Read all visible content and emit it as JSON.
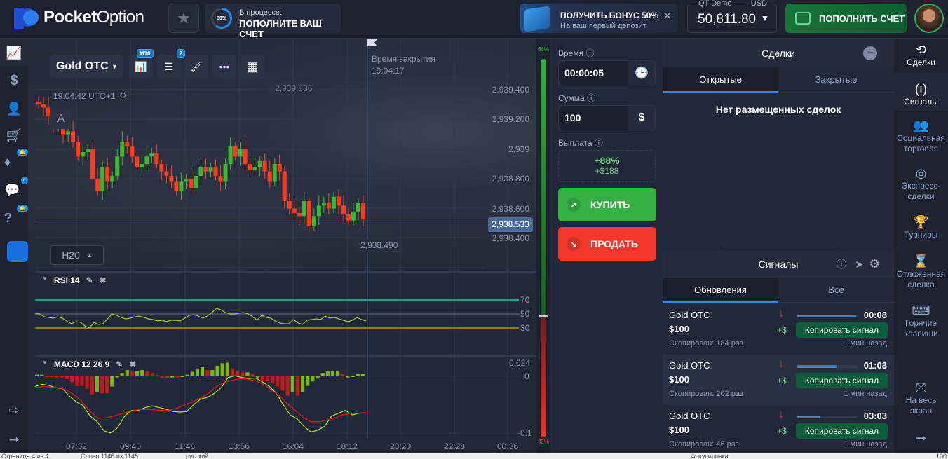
{
  "header": {
    "logo_bold": "Pocket",
    "logo_light": "Option",
    "progress": {
      "percent": 60,
      "percent_label": "60%",
      "line1": "В процессе:",
      "line2": "ПОПОЛНИТЕ ВАШ СЧЕТ"
    },
    "bonus": {
      "title": "ПОЛУЧИТЬ БОНУС 50%",
      "subtitle": "На ваш первый депозит"
    },
    "account": {
      "type": "QT Demo",
      "currency": "USD",
      "balance": "50,811.80"
    },
    "deposit_label": "ПОПОЛНИТЬ СЧЕТ"
  },
  "left_sidebar": {
    "items": [
      {
        "icon": "chart-icon"
      },
      {
        "icon": "dollar-icon"
      },
      {
        "icon": "user-icon"
      },
      {
        "icon": "cart-icon"
      },
      {
        "icon": "diamond-icon",
        "badge": "🔔"
      },
      {
        "icon": "chat-icon",
        "badge": "4"
      },
      {
        "icon": "help-icon",
        "badge": "🔔"
      },
      {
        "icon": "app-icon"
      }
    ],
    "bottom": [
      {
        "icon": "logout-icon"
      },
      {
        "icon": "arrow-right-icon"
      }
    ]
  },
  "chart": {
    "asset": "Gold OTC",
    "timeframe_badge": "M10",
    "indicators_badge": "2",
    "close_time_label": "Время закрытия",
    "close_time": "19:04:17",
    "clock": "19:04:42 UTC+1",
    "prev_price": "2,939.836",
    "annotation": "A",
    "current_price": "2,938.533",
    "low_price": "2,938.490",
    "zoom_btn": "H20",
    "y_ticks": [
      "2,939.400",
      "2,939.200",
      "2,939",
      "2,938.800",
      "2,938.600",
      "2,938.400"
    ],
    "x_ticks": [
      "07:32",
      "09:40",
      "11:48",
      "13:56",
      "16:04",
      "18:12",
      "20:20",
      "22:28",
      "00:36"
    ],
    "rsi": {
      "label": "RSI 14",
      "levels": [
        "70",
        "50",
        "30"
      ],
      "values": [
        51,
        50,
        46,
        45,
        44,
        46,
        44,
        40,
        36,
        39,
        38,
        33,
        30,
        38,
        35,
        36,
        43,
        50,
        48,
        45,
        43,
        44,
        46,
        47,
        45,
        43,
        42,
        40,
        41,
        39,
        41,
        41,
        40,
        44,
        48,
        49,
        47,
        44,
        47,
        52,
        58,
        56,
        52,
        50,
        50,
        51,
        52,
        50,
        46,
        41,
        48,
        45,
        44,
        40,
        37,
        36,
        36,
        42,
        37,
        35,
        41,
        42,
        43,
        42,
        47,
        44,
        45,
        43,
        41,
        39,
        41,
        45,
        42,
        40
      ]
    },
    "macd": {
      "label": "MACD 12 26 9",
      "top_tick": "0.024",
      "zero_tick": "0",
      "bottom_tick": "-0.1",
      "hist": [
        0.003,
        0.003,
        0,
        -0.001,
        -0.002,
        -0.002,
        -0.005,
        -0.01,
        -0.017,
        -0.017,
        -0.022,
        -0.032,
        -0.027,
        -0.03,
        -0.03,
        -0.018,
        -0.002,
        0.006,
        0.011,
        0.008,
        0.009,
        0.011,
        0.009,
        0.006,
        0.002,
        -0.003,
        -0.003,
        -0.002,
        -0.002,
        -0.001,
        0.003,
        0.008,
        0.012,
        0.016,
        0.011,
        0.011,
        0.018,
        0.023,
        0.024,
        0.014,
        0.009,
        0.007,
        0.007,
        0.004,
        -0.002,
        -0.008,
        -0.008,
        -0.012,
        -0.018,
        -0.025,
        -0.034,
        -0.028,
        -0.034,
        -0.028,
        -0.017,
        -0.009,
        -0.004,
        0.006,
        0.009,
        0.01,
        0.01,
        0.004,
        -0.002,
        -0.001,
        0.004,
        0.004
      ],
      "macd_line": [
        -0.018,
        -0.014,
        -0.016,
        -0.02,
        -0.022,
        -0.035,
        -0.045,
        -0.052,
        -0.07,
        -0.08,
        -0.096,
        -0.1,
        -0.09,
        -0.07,
        -0.06,
        -0.06,
        -0.055,
        -0.052,
        -0.055,
        -0.058,
        -0.062,
        -0.063,
        -0.062,
        -0.05,
        -0.04,
        -0.037,
        -0.03,
        -0.02,
        -0.002,
        0.001,
        -0.002,
        -0.004,
        -0.003,
        -0.01,
        -0.018,
        -0.03,
        -0.05,
        -0.068,
        -0.075,
        -0.088,
        -0.098,
        -0.095,
        -0.088,
        -0.07,
        -0.065,
        -0.06,
        -0.068,
        -0.065,
        -0.064
      ],
      "signal_line": [
        -0.02,
        -0.018,
        -0.019,
        -0.02,
        -0.024,
        -0.033,
        -0.045,
        -0.062,
        -0.074,
        -0.073,
        -0.07,
        -0.066,
        -0.062,
        -0.059,
        -0.058,
        -0.059,
        -0.06,
        -0.06,
        -0.056,
        -0.05,
        -0.045,
        -0.038,
        -0.03,
        -0.018,
        -0.011,
        -0.007,
        -0.004,
        -0.005,
        -0.008,
        -0.014,
        -0.024,
        -0.034,
        -0.048,
        -0.06,
        -0.072,
        -0.08,
        -0.08,
        -0.077,
        -0.073,
        -0.068,
        -0.066,
        -0.065,
        -0.064
      ]
    }
  },
  "chart_data": {
    "type": "candlestick",
    "x_ticks": [
      "07:32",
      "09:40",
      "11:48",
      "13:56",
      "16:04",
      "18:12",
      "20:20",
      "22:28",
      "00:36"
    ],
    "ylim": [
      2938.4,
      2939.4
    ],
    "closes": [
      2939.3,
      2939.28,
      2939.22,
      2939.15,
      2939.18,
      2939.1,
      2939.12,
      2939.05,
      2938.95,
      2938.98,
      2939.0,
      2938.8,
      2938.72,
      2938.88,
      2938.78,
      2938.82,
      2938.95,
      2939.05,
      2939.02,
      2938.95,
      2938.88,
      2938.9,
      2938.95,
      2938.97,
      2938.9,
      2938.85,
      2938.82,
      2938.78,
      2938.72,
      2938.78,
      2938.8,
      2938.74,
      2938.82,
      2938.88,
      2938.85,
      2938.88,
      2938.82,
      2938.78,
      2938.9,
      2939.02,
      2938.95,
      2939.0,
      2938.9,
      2938.86,
      2938.88,
      2938.92,
      2938.85,
      2938.78,
      2938.9,
      2938.85,
      2938.65,
      2938.6,
      2938.57,
      2938.55,
      2938.65,
      2938.48,
      2938.55,
      2938.62,
      2938.64,
      2938.6,
      2938.68,
      2938.62,
      2938.56,
      2938.52,
      2938.58,
      2938.64,
      2938.53
    ]
  },
  "sentiment": {
    "up": "68%",
    "down": "32%",
    "up_fraction": 0.68
  },
  "trade": {
    "time_label": "Время",
    "time_value": "00:00:05",
    "amount_label": "Сумма",
    "amount_value": "100",
    "payout_label": "Выплата",
    "payout_percent": "+88%",
    "payout_amount": "+$188",
    "buy": "КУПИТЬ",
    "sell": "ПРОДАТЬ"
  },
  "deals": {
    "title": "Сделки",
    "tabs": [
      "Открытые",
      "Закрытые"
    ],
    "empty": "Нет размещенных сделок"
  },
  "signals": {
    "title": "Сигналы",
    "tabs": [
      "Обновления",
      "Все"
    ],
    "items": [
      {
        "asset": "Gold OTC",
        "amount": "$100",
        "copied": "Скопирован: 184 раз",
        "time": "00:08",
        "progress": 0.98,
        "plus": "+$",
        "copy": "Копировать сигнал",
        "ago": "1 мин назад"
      },
      {
        "asset": "Gold OTC",
        "amount": "$100",
        "copied": "Скопирован: 202 раз",
        "time": "01:03",
        "progress": 0.65,
        "plus": "+$",
        "copy": "Копировать сигнал",
        "ago": "1 мин назад"
      },
      {
        "asset": "Gold OTC",
        "amount": "$100",
        "copied": "Скопирован: 46 раз",
        "time": "03:03",
        "progress": 0.39,
        "plus": "+$",
        "copy": "Копировать сигнал",
        "ago": "1 мин назад"
      }
    ]
  },
  "right_nav": [
    {
      "label": "Сделки",
      "icon": "history-icon"
    },
    {
      "label": "Сигналы",
      "icon": "signal-icon"
    },
    {
      "label": "Социальная торговля",
      "icon": "users-icon"
    },
    {
      "label": "Экспресс-сделки",
      "icon": "target-icon"
    },
    {
      "label": "Турниры",
      "icon": "trophy-icon"
    },
    {
      "label": "Отложенная сделка",
      "icon": "hourglass-icon"
    },
    {
      "label": "Горячие клавиши",
      "icon": "keyboard-icon"
    },
    {
      "label": "На весь экран",
      "icon": "fullscreen-icon"
    }
  ],
  "status_bar": {
    "page": "Страница 4 из 4",
    "words": "Слово 1146 из 1146",
    "lang": "русский",
    "focus": "Фокусировка",
    "zoom": "100"
  },
  "colors": {
    "up": "#3cb531",
    "down": "#ff3a1f",
    "accent": "#2a8af0",
    "buy": "#35b044",
    "sell": "#f2372c"
  }
}
